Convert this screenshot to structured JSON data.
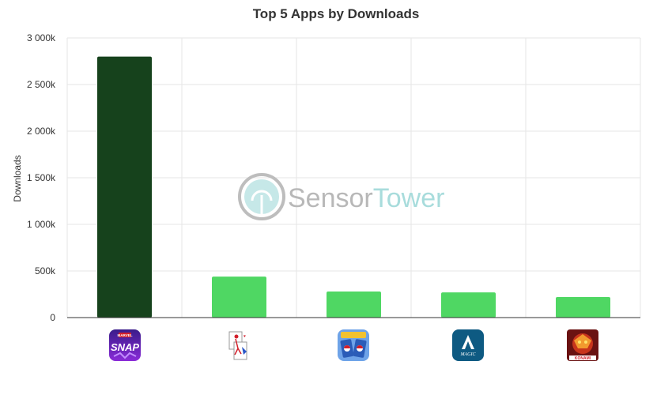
{
  "chart_data": {
    "type": "bar",
    "title": "Top 5 Apps by Downloads",
    "xlabel": "",
    "ylabel": "Downloads",
    "ylim": [
      0,
      3000000
    ],
    "yticks": [
      {
        "value": 0,
        "label": "0"
      },
      {
        "value": 500000,
        "label": "500k"
      },
      {
        "value": 1000000,
        "label": "1 000k"
      },
      {
        "value": 1500000,
        "label": "1 500k"
      },
      {
        "value": 2000000,
        "label": "2 000k"
      },
      {
        "value": 2500000,
        "label": "2 500k"
      },
      {
        "value": 3000000,
        "label": "3 000k"
      }
    ],
    "grid": true,
    "legend": "none",
    "categories": [
      "marvel-snap-icon",
      "solitaire-icon",
      "pokemon-tcg-icon",
      "magic-icon",
      "yugioh-konami-icon"
    ],
    "values": [
      2800000,
      440000,
      280000,
      270000,
      220000
    ],
    "colors": [
      "#16421c",
      "#4fd763",
      "#4fd763",
      "#4fd763",
      "#4fd763"
    ]
  },
  "watermark": {
    "part1": "Sensor",
    "part2": "Tower",
    "color1": "#b8b8b8",
    "color2": "#a8dcdc"
  },
  "icons": [
    {
      "name": "marvel-snap-icon",
      "text_top": "MARVEL",
      "text_main": "SNAP"
    },
    {
      "name": "solitaire-icon"
    },
    {
      "name": "pokemon-tcg-icon"
    },
    {
      "name": "magic-icon",
      "text_main": "MAGIC"
    },
    {
      "name": "yugioh-konami-icon",
      "text_main": "KONAMI"
    }
  ]
}
